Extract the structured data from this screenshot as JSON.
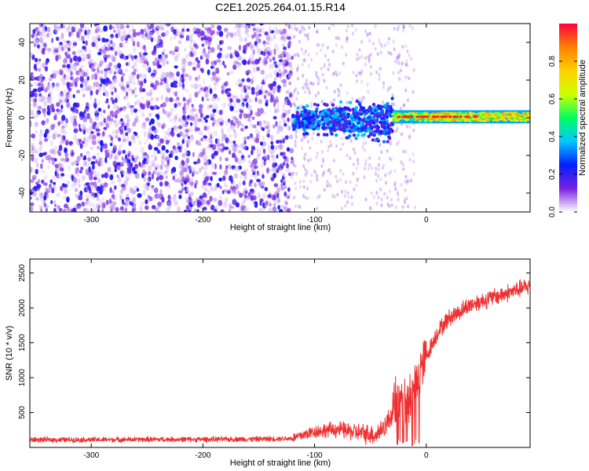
{
  "title": "C2E1.2025.264.01.15.R14",
  "chart_data": [
    {
      "type": "heatmap",
      "name": "spectrogram",
      "xlabel": "Height of straight line (km)",
      "ylabel": "Frequency (Hz)",
      "xlim": [
        -355,
        93
      ],
      "ylim": [
        -50,
        50
      ],
      "xticks": [
        -300,
        -200,
        -100,
        0
      ],
      "yticks": [
        -40,
        -20,
        0,
        20,
        40
      ],
      "colorbar": {
        "label": "Normalized spectral amplitude",
        "range": [
          0.0,
          1.0
        ],
        "ticks": [
          0.0,
          0.2,
          0.4,
          0.6,
          0.8
        ],
        "colors": [
          "#ffffff",
          "#7a20e0",
          "#0020ff",
          "#00c8ff",
          "#00ff60",
          "#d0ff00",
          "#ffd000",
          "#ff8000",
          "#ff0040"
        ]
      },
      "regions": [
        {
          "x_range": [
            -355,
            -120
          ],
          "freq_range": [
            -50,
            50
          ],
          "amplitude": 0.1,
          "description": "broadband noise"
        },
        {
          "x_range": [
            -120,
            -30
          ],
          "freq_range": [
            -15,
            10
          ],
          "amplitude": 0.35,
          "description": "emerging carrier band"
        },
        {
          "x_range": [
            -30,
            93
          ],
          "freq_range": [
            -3,
            4
          ],
          "amplitude": 0.9,
          "description": "strong carrier"
        }
      ]
    },
    {
      "type": "line",
      "name": "snr",
      "xlabel": "Height of straight line (km)",
      "ylabel": "SNR (10 * v/v)",
      "xlim": [
        -355,
        93
      ],
      "ylim": [
        0,
        2700
      ],
      "xticks": [
        -300,
        -200,
        -100,
        0
      ],
      "yticks": [
        500,
        1000,
        1500,
        2000,
        2500
      ],
      "color": "#ee3030",
      "x": [
        -355,
        -300,
        -250,
        -200,
        -150,
        -120,
        -100,
        -80,
        -60,
        -45,
        -35,
        -30,
        -25,
        -20,
        -15,
        -10,
        -5,
        0,
        10,
        20,
        30,
        40,
        50,
        60,
        70,
        80,
        90,
        93
      ],
      "y": [
        110,
        110,
        115,
        115,
        120,
        130,
        230,
        260,
        210,
        180,
        350,
        500,
        700,
        600,
        700,
        900,
        1100,
        1300,
        1650,
        1850,
        1950,
        2050,
        2100,
        2150,
        2200,
        2250,
        2300,
        2320
      ]
    }
  ]
}
